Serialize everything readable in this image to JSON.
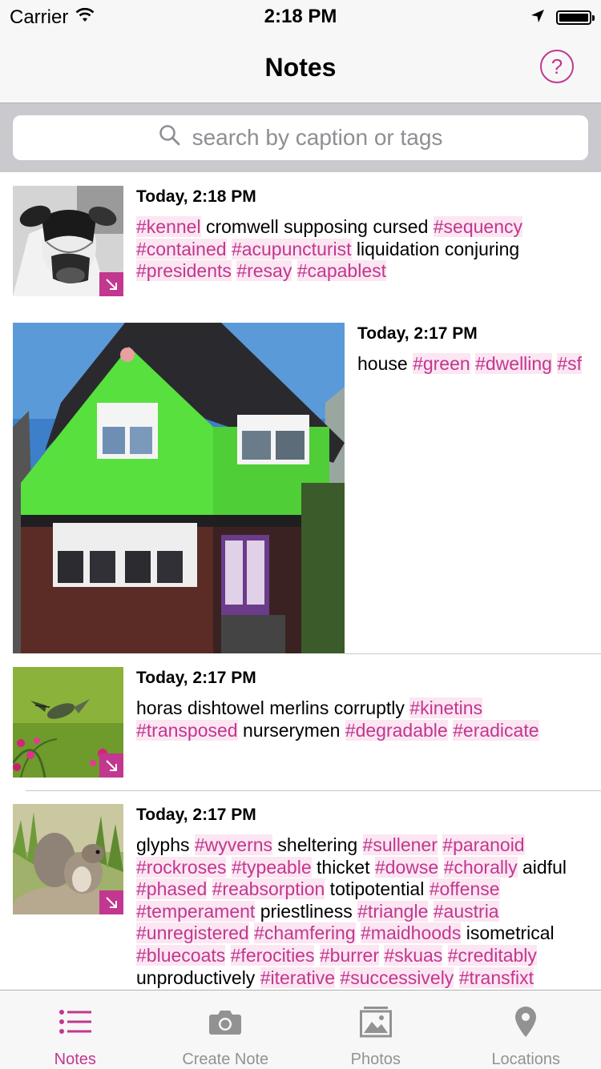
{
  "status_bar": {
    "carrier": "Carrier",
    "time": "2:18 PM",
    "battery_level": 1.0
  },
  "nav": {
    "title": "Notes",
    "help_label": "?"
  },
  "search": {
    "placeholder": "search by caption or tags"
  },
  "notes": [
    {
      "date": "Today, 2:18 PM",
      "thumb_icon": "cow-photo",
      "caption": [
        {
          "t": "#kennel",
          "tag": true
        },
        {
          "t": " cromwell supposing cursed ",
          "tag": false
        },
        {
          "t": "#sequency",
          "tag": true
        },
        {
          "t": " ",
          "tag": false
        },
        {
          "t": "#contained",
          "tag": true
        },
        {
          "t": " ",
          "tag": false
        },
        {
          "t": "#acupuncturist",
          "tag": true
        },
        {
          "t": " liquidation conjuring ",
          "tag": false
        },
        {
          "t": "#presidents",
          "tag": true
        },
        {
          "t": " ",
          "tag": false
        },
        {
          "t": "#resay",
          "tag": true
        },
        {
          "t": " ",
          "tag": false
        },
        {
          "t": "#capablest",
          "tag": true
        }
      ]
    },
    {
      "date": "Today, 2:17 PM",
      "thumb_icon": "green-house-photo",
      "caption": [
        {
          "t": "house ",
          "tag": false
        },
        {
          "t": "#green",
          "tag": true
        },
        {
          "t": " ",
          "tag": false
        },
        {
          "t": "#dwelling",
          "tag": true
        },
        {
          "t": " ",
          "tag": false
        },
        {
          "t": "#sf",
          "tag": true
        }
      ]
    },
    {
      "date": "Today, 2:17 PM",
      "thumb_icon": "hummingbird-photo",
      "caption": [
        {
          "t": "horas dishtowel merlins corruptly ",
          "tag": false
        },
        {
          "t": "#kinetins",
          "tag": true
        },
        {
          "t": " ",
          "tag": false
        },
        {
          "t": "#transposed",
          "tag": true
        },
        {
          "t": " nurserymen ",
          "tag": false
        },
        {
          "t": "#degradable",
          "tag": true
        },
        {
          "t": " ",
          "tag": false
        },
        {
          "t": "#eradicate",
          "tag": true
        }
      ]
    },
    {
      "date": "Today, 2:17 PM",
      "thumb_icon": "squirrel-photo",
      "caption": [
        {
          "t": "glyphs ",
          "tag": false
        },
        {
          "t": "#wyverns",
          "tag": true
        },
        {
          "t": " sheltering ",
          "tag": false
        },
        {
          "t": "#sullener",
          "tag": true
        },
        {
          "t": " ",
          "tag": false
        },
        {
          "t": "#paranoid",
          "tag": true
        },
        {
          "t": " ",
          "tag": false
        },
        {
          "t": "#rockroses",
          "tag": true
        },
        {
          "t": " ",
          "tag": false
        },
        {
          "t": "#typeable",
          "tag": true
        },
        {
          "t": " thicket ",
          "tag": false
        },
        {
          "t": "#dowse",
          "tag": true
        },
        {
          "t": " ",
          "tag": false
        },
        {
          "t": "#chorally",
          "tag": true
        },
        {
          "t": " aidful ",
          "tag": false
        },
        {
          "t": "#phased",
          "tag": true
        },
        {
          "t": " ",
          "tag": false
        },
        {
          "t": "#reabsorption",
          "tag": true
        },
        {
          "t": " totipotential ",
          "tag": false
        },
        {
          "t": "#offense",
          "tag": true
        },
        {
          "t": " ",
          "tag": false
        },
        {
          "t": "#temperament",
          "tag": true
        },
        {
          "t": " priestliness ",
          "tag": false
        },
        {
          "t": "#triangle",
          "tag": true
        },
        {
          "t": " ",
          "tag": false
        },
        {
          "t": "#austria",
          "tag": true
        },
        {
          "t": " ",
          "tag": false
        },
        {
          "t": "#unregistered",
          "tag": true
        },
        {
          "t": " ",
          "tag": false
        },
        {
          "t": "#chamfering",
          "tag": true
        },
        {
          "t": " ",
          "tag": false
        },
        {
          "t": "#maidhoods",
          "tag": true
        },
        {
          "t": " isometrical ",
          "tag": false
        },
        {
          "t": "#bluecoats",
          "tag": true
        },
        {
          "t": " ",
          "tag": false
        },
        {
          "t": "#ferocities",
          "tag": true
        },
        {
          "t": " ",
          "tag": false
        },
        {
          "t": "#burrer",
          "tag": true
        },
        {
          "t": " ",
          "tag": false
        },
        {
          "t": "#skuas",
          "tag": true
        },
        {
          "t": " ",
          "tag": false
        },
        {
          "t": "#creditably",
          "tag": true
        },
        {
          "t": " unproductively ",
          "tag": false
        },
        {
          "t": "#iterative",
          "tag": true
        },
        {
          "t": " ",
          "tag": false
        },
        {
          "t": "#successively",
          "tag": true
        },
        {
          "t": " ",
          "tag": false
        },
        {
          "t": "#transfixt",
          "tag": true
        }
      ]
    }
  ],
  "tabs": [
    {
      "label": "Notes",
      "icon": "list-icon",
      "active": true
    },
    {
      "label": "Create Note",
      "icon": "camera-icon",
      "active": false
    },
    {
      "label": "Photos",
      "icon": "photos-icon",
      "active": false
    },
    {
      "label": "Locations",
      "icon": "location-pin-icon",
      "active": false
    }
  ],
  "colors": {
    "accent": "#c2378f",
    "tag_background": "#fbe6f2",
    "inactive_tab": "#929292"
  }
}
